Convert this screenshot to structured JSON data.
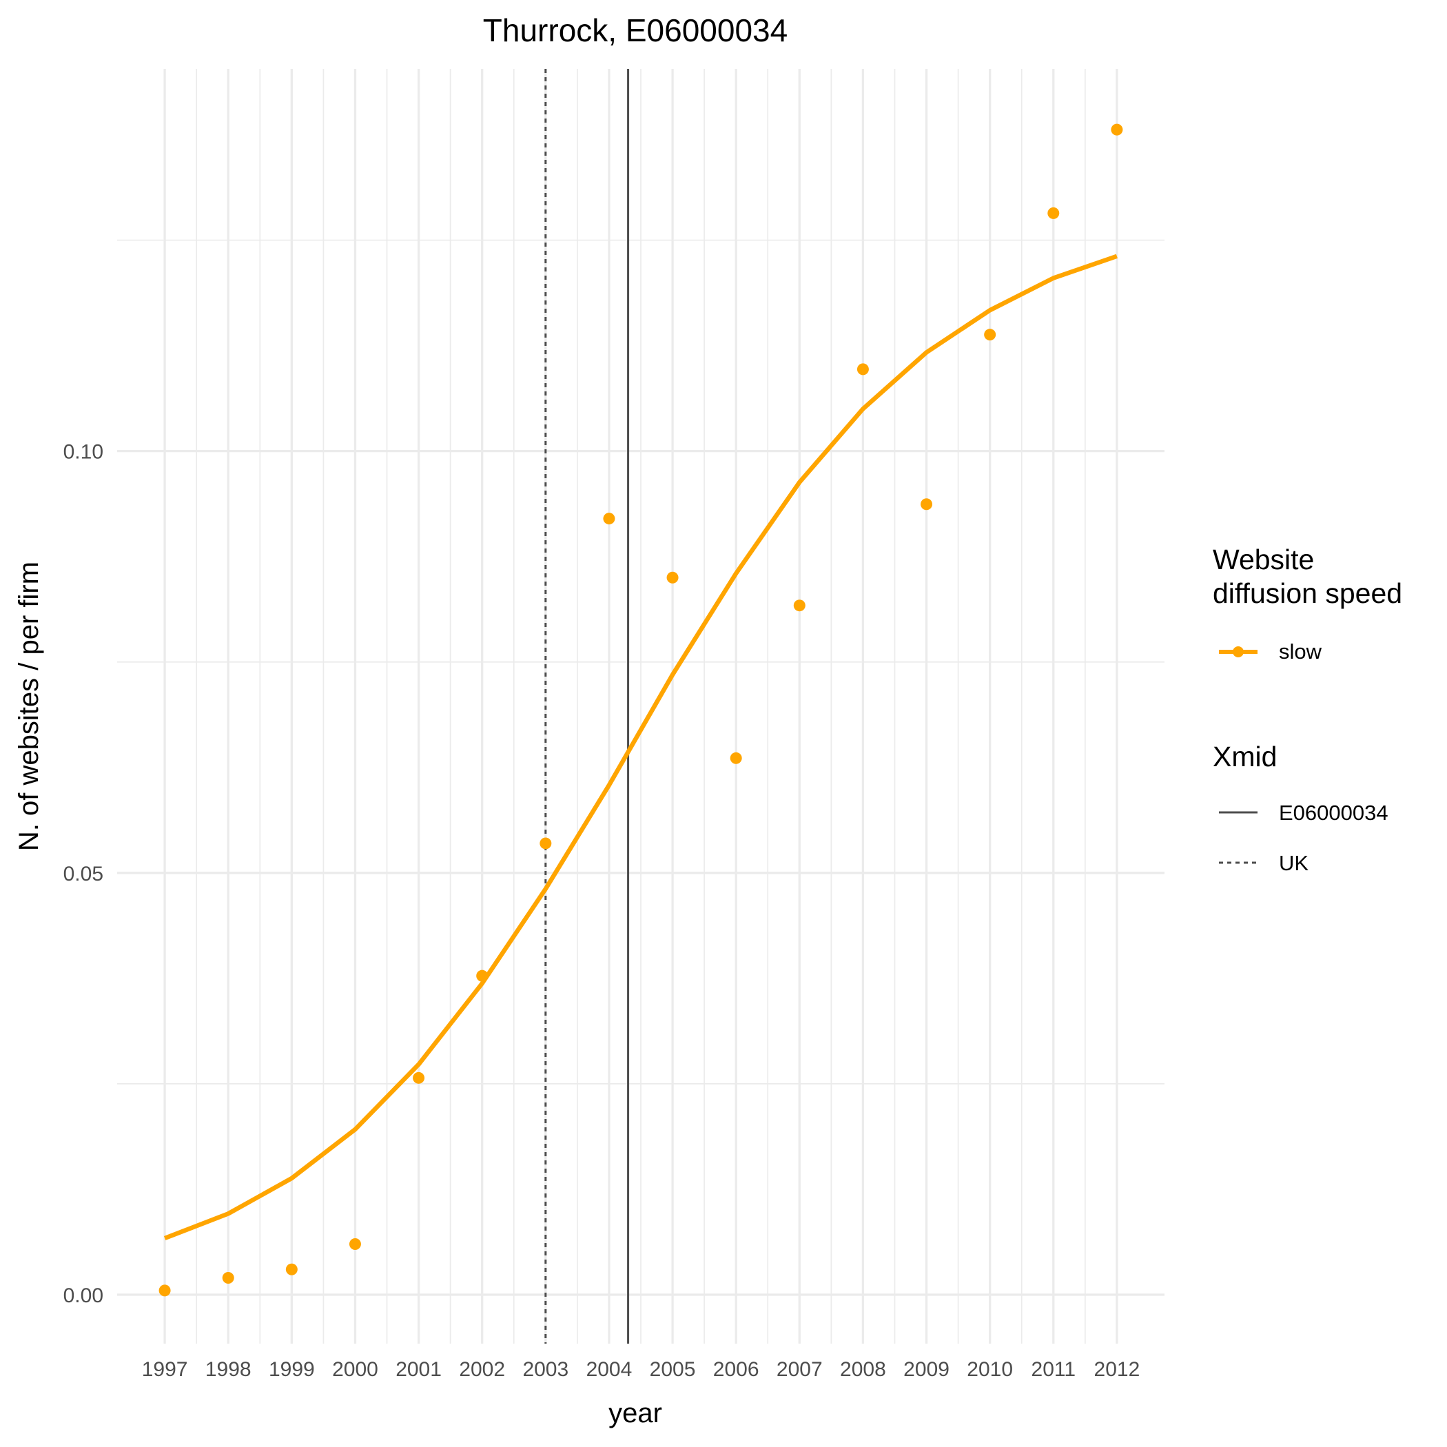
{
  "chart_data": {
    "type": "line",
    "title": "Thurrock, E06000034",
    "xlabel": "year",
    "ylabel": "N. of websites / per firm",
    "x_categories": [
      "1997",
      "1998",
      "1999",
      "2000",
      "2001",
      "2002",
      "2003",
      "2004",
      "2005",
      "2006",
      "2007",
      "2008",
      "2009",
      "2010",
      "2011",
      "2012"
    ],
    "xlim": [
      1996.25,
      2012.75
    ],
    "ylim": [
      -0.0058,
      0.1453
    ],
    "y_ticks": [
      0.0,
      0.05,
      0.1
    ],
    "y_tick_labels": [
      "0.00",
      "0.05",
      "0.10"
    ],
    "grid": true,
    "series": [
      {
        "name": "slow",
        "color": "#FFA500",
        "points": [
          {
            "x": 1997,
            "y": 0.0005
          },
          {
            "x": 1998,
            "y": 0.002
          },
          {
            "x": 1999,
            "y": 0.003
          },
          {
            "x": 2000,
            "y": 0.006
          },
          {
            "x": 2001,
            "y": 0.0257
          },
          {
            "x": 2002,
            "y": 0.0378
          },
          {
            "x": 2003,
            "y": 0.0535
          },
          {
            "x": 2004,
            "y": 0.092
          },
          {
            "x": 2005,
            "y": 0.085
          },
          {
            "x": 2006,
            "y": 0.0636
          },
          {
            "x": 2007,
            "y": 0.0817
          },
          {
            "x": 2008,
            "y": 0.1097
          },
          {
            "x": 2009,
            "y": 0.0937
          },
          {
            "x": 2010,
            "y": 0.1138
          },
          {
            "x": 2011,
            "y": 0.1282
          },
          {
            "x": 2012,
            "y": 0.1381
          }
        ],
        "fit": [
          {
            "x": 1997,
            "y": 0.0067
          },
          {
            "x": 1998,
            "y": 0.0096
          },
          {
            "x": 1999,
            "y": 0.0138
          },
          {
            "x": 2000,
            "y": 0.0196
          },
          {
            "x": 2001,
            "y": 0.0273
          },
          {
            "x": 2002,
            "y": 0.0369
          },
          {
            "x": 2003,
            "y": 0.0481
          },
          {
            "x": 2004,
            "y": 0.0604
          },
          {
            "x": 2005,
            "y": 0.0735
          },
          {
            "x": 2006,
            "y": 0.0855
          },
          {
            "x": 2007,
            "y": 0.0963
          },
          {
            "x": 2008,
            "y": 0.105
          },
          {
            "x": 2009,
            "y": 0.1117
          },
          {
            "x": 2010,
            "y": 0.1167
          },
          {
            "x": 2011,
            "y": 0.1205
          },
          {
            "x": 2012,
            "y": 0.1231
          }
        ]
      }
    ],
    "vlines": [
      {
        "name": "E06000034",
        "x": 2004.3,
        "style": "solid",
        "color": "#4d4d4d"
      },
      {
        "name": "UK",
        "x": 2003.0,
        "style": "dashed",
        "color": "#4d4d4d"
      }
    ],
    "legend": {
      "placement": "right",
      "speed_title_line1": "Website",
      "speed_title_line2": "diffusion speed",
      "speed_items": [
        "slow"
      ],
      "xmid_title": "Xmid",
      "xmid_items": [
        "E06000034",
        "UK"
      ]
    }
  }
}
